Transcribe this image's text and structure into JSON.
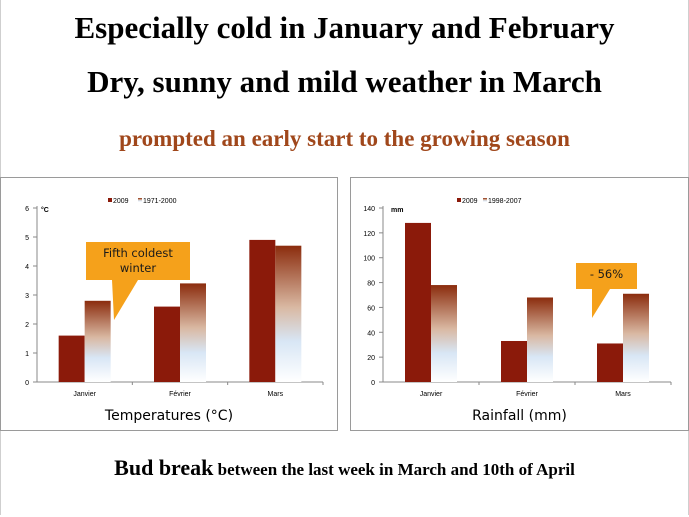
{
  "titles": {
    "line1": "Especially cold in January and February",
    "line2": "Dry, sunny and mild weather in March",
    "line3": "prompted an early start to the growing season"
  },
  "footer": {
    "lead": "Bud break",
    "rest": " between the last week in March and 10th of April"
  },
  "colors": {
    "series_2009": "#8b1a0a",
    "series_normal_top": "#8b2c0d",
    "series_normal_bottom": "#ffffff",
    "callout": "#f5a11b",
    "subtitle": "#a0471b"
  },
  "chart_data": [
    {
      "type": "bar",
      "caption": "Temperatures (°C)",
      "ylabel": "°C",
      "categories": [
        "Janvier",
        "Février",
        "Mars"
      ],
      "series": [
        {
          "name": "2009",
          "values": [
            1.6,
            2.6,
            4.9
          ]
        },
        {
          "name": "1971-2000",
          "values": [
            2.8,
            3.4,
            4.7
          ]
        }
      ],
      "ylim": [
        0,
        6
      ],
      "yticks": [
        0,
        1,
        2,
        3,
        4,
        5,
        6
      ],
      "legend": "top-center",
      "grid": false,
      "callout": {
        "text_lines": [
          "Fifth coldest",
          "winter"
        ]
      }
    },
    {
      "type": "bar",
      "caption": "Rainfall (mm)",
      "ylabel": "mm",
      "categories": [
        "Janvier",
        "Février",
        "Mars"
      ],
      "series": [
        {
          "name": "2009",
          "values": [
            128,
            33,
            31
          ]
        },
        {
          "name": "1998-2007",
          "values": [
            78,
            68,
            71
          ]
        }
      ],
      "ylim": [
        0,
        140
      ],
      "yticks": [
        0,
        20,
        40,
        60,
        80,
        100,
        120,
        140
      ],
      "legend": "top-center",
      "grid": false,
      "callout": {
        "text_lines": [
          "- 56%"
        ]
      }
    }
  ]
}
